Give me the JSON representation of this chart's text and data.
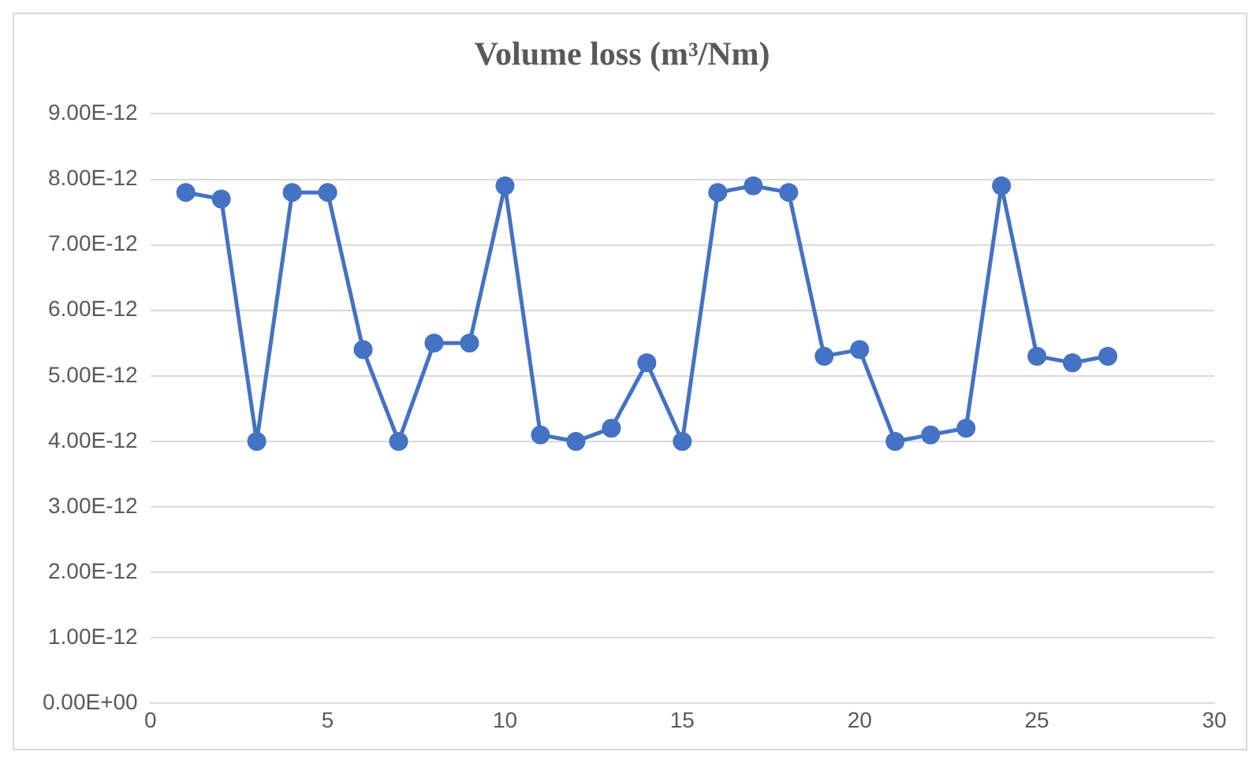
{
  "chart_data": {
    "type": "line",
    "title": "Volume loss (m³/Nm)",
    "x": [
      1,
      2,
      3,
      4,
      5,
      6,
      7,
      8,
      9,
      10,
      11,
      12,
      13,
      14,
      15,
      16,
      17,
      18,
      19,
      20,
      21,
      22,
      23,
      24,
      25,
      26,
      27
    ],
    "series": [
      {
        "color": "#4472c4",
        "values": [
          7.8e-12,
          7.7e-12,
          4e-12,
          7.8e-12,
          7.8e-12,
          5.4e-12,
          4e-12,
          5.5e-12,
          5.5e-12,
          7.9e-12,
          4.1e-12,
          4e-12,
          4.2e-12,
          5.2e-12,
          4e-12,
          7.8e-12,
          7.9e-12,
          7.8e-12,
          5.3e-12,
          5.4e-12,
          4e-12,
          4.1e-12,
          4.2e-12,
          7.9e-12,
          5.3e-12,
          5.2e-12,
          5.3e-12
        ]
      }
    ],
    "xlim": [
      0,
      30
    ],
    "xticks": [
      0,
      5,
      10,
      15,
      20,
      25,
      30
    ],
    "ylim": [
      0,
      9e-12
    ],
    "yticks": [
      {
        "value": 0,
        "label": "0.00E+00"
      },
      {
        "value": 1e-12,
        "label": "1.00E-12"
      },
      {
        "value": 2e-12,
        "label": "2.00E-12"
      },
      {
        "value": 3e-12,
        "label": "3.00E-12"
      },
      {
        "value": 4e-12,
        "label": "4.00E-12"
      },
      {
        "value": 5e-12,
        "label": "5.00E-12"
      },
      {
        "value": 6e-12,
        "label": "6.00E-12"
      },
      {
        "value": 7e-12,
        "label": "7.00E-12"
      },
      {
        "value": 8e-12,
        "label": "8.00E-12"
      },
      {
        "value": 9e-12,
        "label": "9.00E-12"
      }
    ],
    "grid": "y",
    "legend": false,
    "marker": "circle",
    "line_style": "solid"
  }
}
